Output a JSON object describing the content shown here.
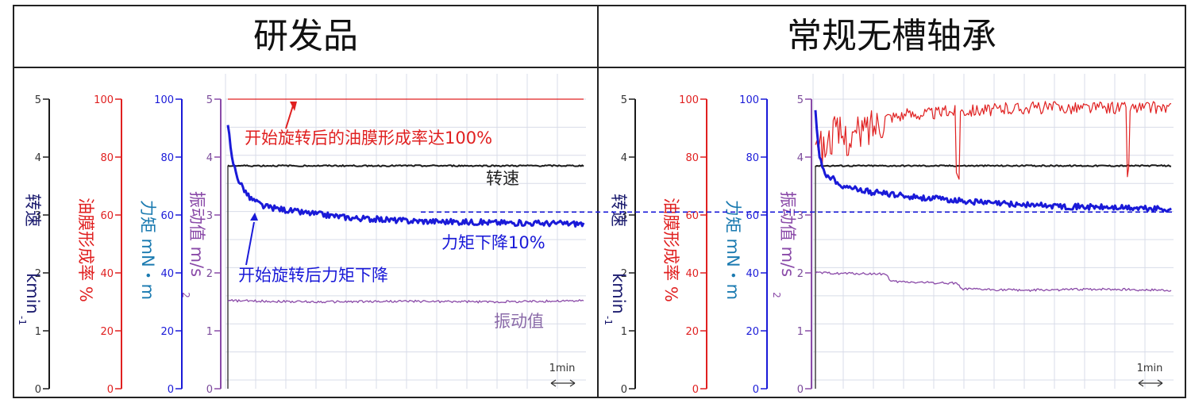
{
  "colors": {
    "speed": "#1a1a1a",
    "speed_label": "#1a1a6e",
    "oil": "#e02020",
    "torque": "#1a1ad8",
    "torque_label": "#1a7ab0",
    "vibration": "#8a4aa8",
    "grid": "#d8dce8"
  },
  "axis_labels": {
    "speed": "转速",
    "speed_unit": "kmin",
    "speed_unit_sup": "-1",
    "oil": "油膜形成率 %",
    "torque": "力矩 mN・m",
    "vibration": "振动值 m/s",
    "vibration_sup": "2"
  },
  "time_scale_label": "1min",
  "chart_data": [
    {
      "type": "line",
      "title": "研发品",
      "axes": [
        {
          "name": "speed",
          "ticks": [
            0,
            1,
            2,
            3,
            4,
            5
          ],
          "ylim": [
            0,
            5
          ]
        },
        {
          "name": "oil",
          "ticks": [
            0,
            20,
            40,
            60,
            80,
            100
          ],
          "ylim": [
            0,
            100
          ]
        },
        {
          "name": "torque",
          "ticks": [
            0,
            20,
            40,
            60,
            80,
            100
          ],
          "ylim": [
            0,
            100
          ]
        },
        {
          "name": "vibration",
          "ticks": [
            0,
            1,
            2,
            3,
            4,
            5
          ],
          "ylim": [
            0,
            5
          ]
        }
      ],
      "series": [
        {
          "name": "转速",
          "axis": "speed",
          "points": [
            [
              0,
              3.85
            ],
            [
              1,
              3.85
            ]
          ]
        },
        {
          "name": "油膜形成率",
          "axis": "oil",
          "points": [
            [
              0,
              100
            ],
            [
              1,
              100
            ]
          ]
        },
        {
          "name": "力矩",
          "axis": "torque",
          "points": [
            [
              0,
              92
            ],
            [
              0.01,
              80
            ],
            [
              0.03,
              72
            ],
            [
              0.06,
              66
            ],
            [
              0.1,
              63
            ],
            [
              0.2,
              61
            ],
            [
              0.35,
              59
            ],
            [
              0.5,
              58
            ],
            [
              0.7,
              57.5
            ],
            [
              0.85,
              57.2
            ],
            [
              1,
              57
            ]
          ]
        },
        {
          "name": "振动值",
          "axis": "vibration",
          "points": [
            [
              0,
              1.52
            ],
            [
              0.25,
              1.5
            ],
            [
              0.5,
              1.51
            ],
            [
              0.75,
              1.5
            ],
            [
              1,
              1.52
            ]
          ]
        }
      ],
      "annotations": [
        "开始旋转后的油膜形成率达100%",
        "转速",
        "力矩下降10%",
        "开始旋转后力矩下降",
        "振动值"
      ],
      "reference_line_torque": 61
    },
    {
      "type": "line",
      "title": "常规无槽轴承",
      "axes": [
        {
          "name": "speed",
          "ticks": [
            0,
            1,
            2,
            3,
            4,
            5
          ],
          "ylim": [
            0,
            5
          ]
        },
        {
          "name": "oil",
          "ticks": [
            0,
            20,
            40,
            60,
            80,
            100
          ],
          "ylim": [
            0,
            100
          ]
        },
        {
          "name": "torque",
          "ticks": [
            0,
            20,
            40,
            60,
            80,
            100
          ],
          "ylim": [
            0,
            100
          ]
        },
        {
          "name": "vibration",
          "ticks": [
            0,
            1,
            2,
            3,
            4,
            5
          ],
          "ylim": [
            0,
            5
          ]
        }
      ],
      "series": [
        {
          "name": "转速",
          "axis": "speed",
          "points": [
            [
              0,
              3.85
            ],
            [
              1,
              3.85
            ]
          ]
        },
        {
          "name": "油膜形成率",
          "axis": "oil",
          "points": [
            [
              0,
              90
            ],
            [
              0.02,
              82
            ],
            [
              0.05,
              88
            ],
            [
              0.1,
              86
            ],
            [
              0.15,
              90
            ],
            [
              0.2,
              94
            ],
            [
              0.4,
              96
            ],
            [
              0.6,
              97
            ],
            [
              0.8,
              97
            ],
            [
              1,
              97
            ]
          ]
        },
        {
          "name": "力矩",
          "axis": "torque",
          "points": [
            [
              0,
              97
            ],
            [
              0.01,
              80
            ],
            [
              0.03,
              74
            ],
            [
              0.08,
              70
            ],
            [
              0.15,
              68
            ],
            [
              0.3,
              66
            ],
            [
              0.5,
              64
            ],
            [
              0.7,
              63
            ],
            [
              0.85,
              62.5
            ],
            [
              1,
              62
            ]
          ]
        },
        {
          "name": "振动值",
          "axis": "vibration",
          "points": [
            [
              0,
              2.0
            ],
            [
              0.2,
              1.98
            ],
            [
              0.21,
              1.85
            ],
            [
              0.4,
              1.82
            ],
            [
              0.41,
              1.72
            ],
            [
              0.6,
              1.7
            ],
            [
              0.8,
              1.72
            ],
            [
              1,
              1.7
            ]
          ]
        }
      ],
      "reference_line_torque": 61
    }
  ]
}
